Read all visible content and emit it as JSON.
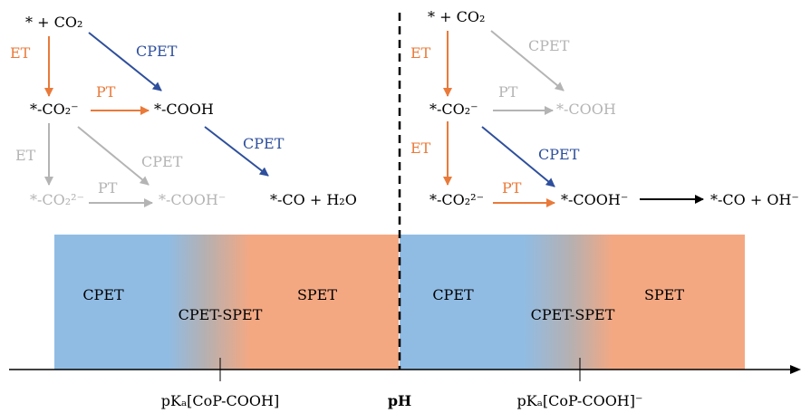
{
  "colors": {
    "orange": "#e97a3a",
    "blue": "#2e4f9c",
    "grey": "#b4b4b4",
    "black": "#000000",
    "band_blue": "#90bce4",
    "band_orange": "#f4a882"
  },
  "left": {
    "start": "* + CO₂",
    "co2_minus": "*-CO₂⁻",
    "cooh": "*-COOH",
    "co2_2minus": "*-CO₂²⁻",
    "cooh_minus": "*-COOH⁻",
    "product": "*-CO + H₂O",
    "et_top": "ET",
    "cpet_top": "CPET",
    "pt_mid": "PT",
    "cpet_mid": "CPET",
    "et_low": "ET",
    "cpet_low": "CPET",
    "pt_low": "PT"
  },
  "right": {
    "start": "* + CO₂",
    "co2_minus": "*-CO₂⁻",
    "cooh": "*-COOH",
    "co2_2minus": "*-CO₂²⁻",
    "cooh_minus": "*-COOH⁻",
    "product": "*-CO + OH⁻",
    "et_top": "ET",
    "cpet_top": "CPET",
    "pt_mid": "PT",
    "et_low": "ET",
    "cpet_mid": "CPET",
    "pt_low": "PT"
  },
  "bands": {
    "left_cpet": "CPET",
    "left_mixed": "CPET-SPET",
    "left_spet": "SPET",
    "right_cpet": "CPET",
    "right_mixed": "CPET-SPET",
    "right_spet": "SPET"
  },
  "axis": {
    "pka1": "pKₐ[CoP-COOH]",
    "ph": "pH",
    "pka2": "pKₐ[CoP-COOH]⁻"
  }
}
